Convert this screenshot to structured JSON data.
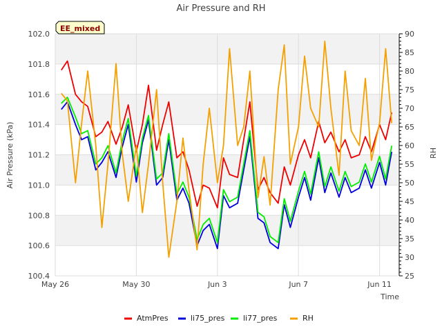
{
  "chart_data": {
    "type": "line",
    "title": "Air Pressure and RH",
    "xlabel": "Time",
    "ylabel": "Air Pressure (kPa)",
    "y2label": "RH",
    "tag": "EE_mixed",
    "grid": true,
    "ylim": [
      100.4,
      102.0
    ],
    "y2lim": [
      25,
      90
    ],
    "yticks": [
      "100.4",
      "100.6",
      "100.8",
      "101.0",
      "101.2",
      "101.4",
      "101.6",
      "101.8",
      "102.0"
    ],
    "y2ticks": [
      "25",
      "30",
      "35",
      "40",
      "45",
      "50",
      "55",
      "60",
      "65",
      "70",
      "75",
      "80",
      "85",
      "90"
    ],
    "xticks": [
      "May 26",
      "May 30",
      "Jun 3",
      "Jun 7",
      "Jun 11"
    ],
    "xtick_days": [
      0,
      4,
      8,
      12,
      16
    ],
    "xlim_days": [
      0,
      16.9
    ],
    "legend_position": "bottom",
    "x_days": [
      0.3,
      0.6,
      1.0,
      1.3,
      1.6,
      2.0,
      2.3,
      2.6,
      3.0,
      3.3,
      3.6,
      4.0,
      4.3,
      4.6,
      5.0,
      5.3,
      5.6,
      6.0,
      6.3,
      6.6,
      7.0,
      7.3,
      7.6,
      8.0,
      8.3,
      8.6,
      9.0,
      9.3,
      9.6,
      10.0,
      10.3,
      10.6,
      11.0,
      11.3,
      11.6,
      12.0,
      12.3,
      12.6,
      13.0,
      13.3,
      13.6,
      14.0,
      14.3,
      14.6,
      15.0,
      15.3,
      15.6,
      16.0,
      16.3,
      16.6
    ],
    "series": [
      {
        "name": "AtmPres",
        "color": "#ee0000",
        "axis": "left",
        "values": [
          101.76,
          101.82,
          101.6,
          101.55,
          101.52,
          101.32,
          101.35,
          101.42,
          101.27,
          101.38,
          101.53,
          101.22,
          101.4,
          101.66,
          101.23,
          101.4,
          101.55,
          101.18,
          101.22,
          101.1,
          100.86,
          101.0,
          100.98,
          100.85,
          101.18,
          101.07,
          101.05,
          101.3,
          101.55,
          100.97,
          101.05,
          100.95,
          100.88,
          101.12,
          101.0,
          101.2,
          101.3,
          101.18,
          101.42,
          101.28,
          101.35,
          101.22,
          101.3,
          101.18,
          101.2,
          101.32,
          101.22,
          101.4,
          101.3,
          101.48
        ]
      },
      {
        "name": "li75_pres",
        "color": "#0000dd",
        "axis": "left",
        "values": [
          101.5,
          101.55,
          101.4,
          101.3,
          101.32,
          101.1,
          101.15,
          101.22,
          101.05,
          101.25,
          101.4,
          101.02,
          101.28,
          101.43,
          101.0,
          101.05,
          101.3,
          100.9,
          100.98,
          100.88,
          100.6,
          100.7,
          100.74,
          100.58,
          100.93,
          100.85,
          100.88,
          101.1,
          101.32,
          100.78,
          100.75,
          100.62,
          100.58,
          100.87,
          100.72,
          100.92,
          101.05,
          100.9,
          101.18,
          100.95,
          101.08,
          100.92,
          101.05,
          100.95,
          100.98,
          101.1,
          100.98,
          101.15,
          101.0,
          101.22
        ]
      },
      {
        "name": "li77_pres",
        "color": "#00ee00",
        "axis": "left",
        "values": [
          101.54,
          101.58,
          101.45,
          101.34,
          101.36,
          101.14,
          101.18,
          101.26,
          101.08,
          101.29,
          101.44,
          101.06,
          101.31,
          101.46,
          101.04,
          101.08,
          101.34,
          100.94,
          101.02,
          100.92,
          100.64,
          100.74,
          100.78,
          100.62,
          100.97,
          100.89,
          100.92,
          101.14,
          101.36,
          100.82,
          100.79,
          100.66,
          100.62,
          100.91,
          100.76,
          100.96,
          101.09,
          100.94,
          101.22,
          100.99,
          101.12,
          100.96,
          101.09,
          100.99,
          101.02,
          101.14,
          101.02,
          101.19,
          101.04,
          101.26
        ]
      },
      {
        "name": "RH",
        "color": "#f5a000",
        "axis": "right",
        "values": [
          74,
          72,
          50,
          66,
          80,
          60,
          38,
          55,
          82,
          58,
          45,
          60,
          42,
          55,
          75,
          50,
          30,
          45,
          62,
          48,
          32,
          55,
          70,
          50,
          60,
          86,
          60,
          65,
          80,
          46,
          57,
          44,
          75,
          87,
          55,
          65,
          84,
          70,
          65,
          88,
          70,
          52,
          80,
          64,
          60,
          78,
          56,
          66,
          86,
          66
        ]
      }
    ]
  }
}
